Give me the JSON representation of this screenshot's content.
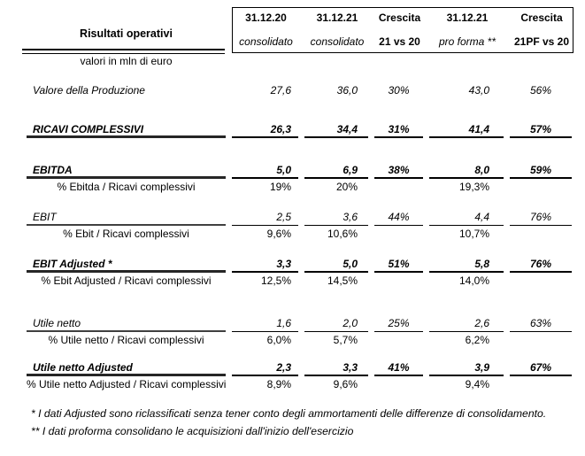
{
  "colors": {
    "text": "#000000",
    "background": "#ffffff",
    "rule": "#000000"
  },
  "header": {
    "title": "Risultati operativi",
    "unit_note": "valori in mln di euro",
    "columns": [
      {
        "line1": "31.12.20",
        "line2": "consolidato"
      },
      {
        "line1": "31.12.21",
        "line2": "consolidato"
      },
      {
        "line1": "Crescita",
        "line2": "21 vs 20"
      },
      {
        "line1": "31.12.21",
        "line2": "pro forma **"
      },
      {
        "line1": "Crescita",
        "line2": "21PF vs 20"
      }
    ]
  },
  "table": {
    "value_columns": [
      "31.12.20 consolidato",
      "31.12.21 consolidato",
      "Crescita 21 vs 20",
      "31.12.21 pro forma",
      "Crescita 21PF vs 20"
    ],
    "rows": [
      {
        "label": "Valore della Produzione",
        "values": [
          "27,6",
          "36,0",
          "30%",
          "43,0",
          "56%"
        ],
        "style": "plain",
        "underline": false
      },
      {
        "label": "RICAVI COMPLESSIVI",
        "values": [
          "26,3",
          "34,4",
          "31%",
          "41,4",
          "57%"
        ],
        "style": "bold",
        "underline": true
      },
      {
        "label": "EBITDA",
        "values": [
          "5,0",
          "6,9",
          "38%",
          "8,0",
          "59%"
        ],
        "style": "bold",
        "underline": true
      },
      {
        "label": "% Ebitda / Ricavi complessivi",
        "values": [
          "19%",
          "20%",
          "",
          "19,3%",
          ""
        ],
        "style": "pct",
        "underline": false
      },
      {
        "label": "EBIT",
        "values": [
          "2,5",
          "3,6",
          "44%",
          "4,4",
          "76%"
        ],
        "style": "italic",
        "underline": true
      },
      {
        "label": "% Ebit / Ricavi complessivi",
        "values": [
          "9,6%",
          "10,6%",
          "",
          "10,7%",
          ""
        ],
        "style": "pct",
        "underline": false
      },
      {
        "label": "EBIT Adjusted *",
        "values": [
          "3,3",
          "5,0",
          "51%",
          "5,8",
          "76%"
        ],
        "style": "bold",
        "underline": true
      },
      {
        "label": "% Ebit Adjusted / Ricavi complessivi",
        "values": [
          "12,5%",
          "14,5%",
          "",
          "14,0%",
          ""
        ],
        "style": "pct",
        "underline": false
      },
      {
        "label": "Utile netto",
        "values": [
          "1,6",
          "2,0",
          "25%",
          "2,6",
          "63%"
        ],
        "style": "italic",
        "underline": true
      },
      {
        "label": "% Utile netto / Ricavi complessivi",
        "values": [
          "6,0%",
          "5,7%",
          "",
          "6,2%",
          ""
        ],
        "style": "pct",
        "underline": false
      },
      {
        "label": "Utile netto Adjusted",
        "values": [
          "2,3",
          "3,3",
          "41%",
          "3,9",
          "67%"
        ],
        "style": "bold",
        "underline": true
      },
      {
        "label": "% Utile netto Adjusted / Ricavi complessivi",
        "values": [
          "8,9%",
          "9,6%",
          "",
          "9,4%",
          ""
        ],
        "style": "pct",
        "underline": false
      }
    ]
  },
  "footnotes": [
    "* I dati Adjusted sono riclassificati senza tener conto degli ammortamenti delle differenze di consolidamento.",
    "** I dati proforma consolidano le acquisizioni dall'inizio dell'esercizio"
  ]
}
